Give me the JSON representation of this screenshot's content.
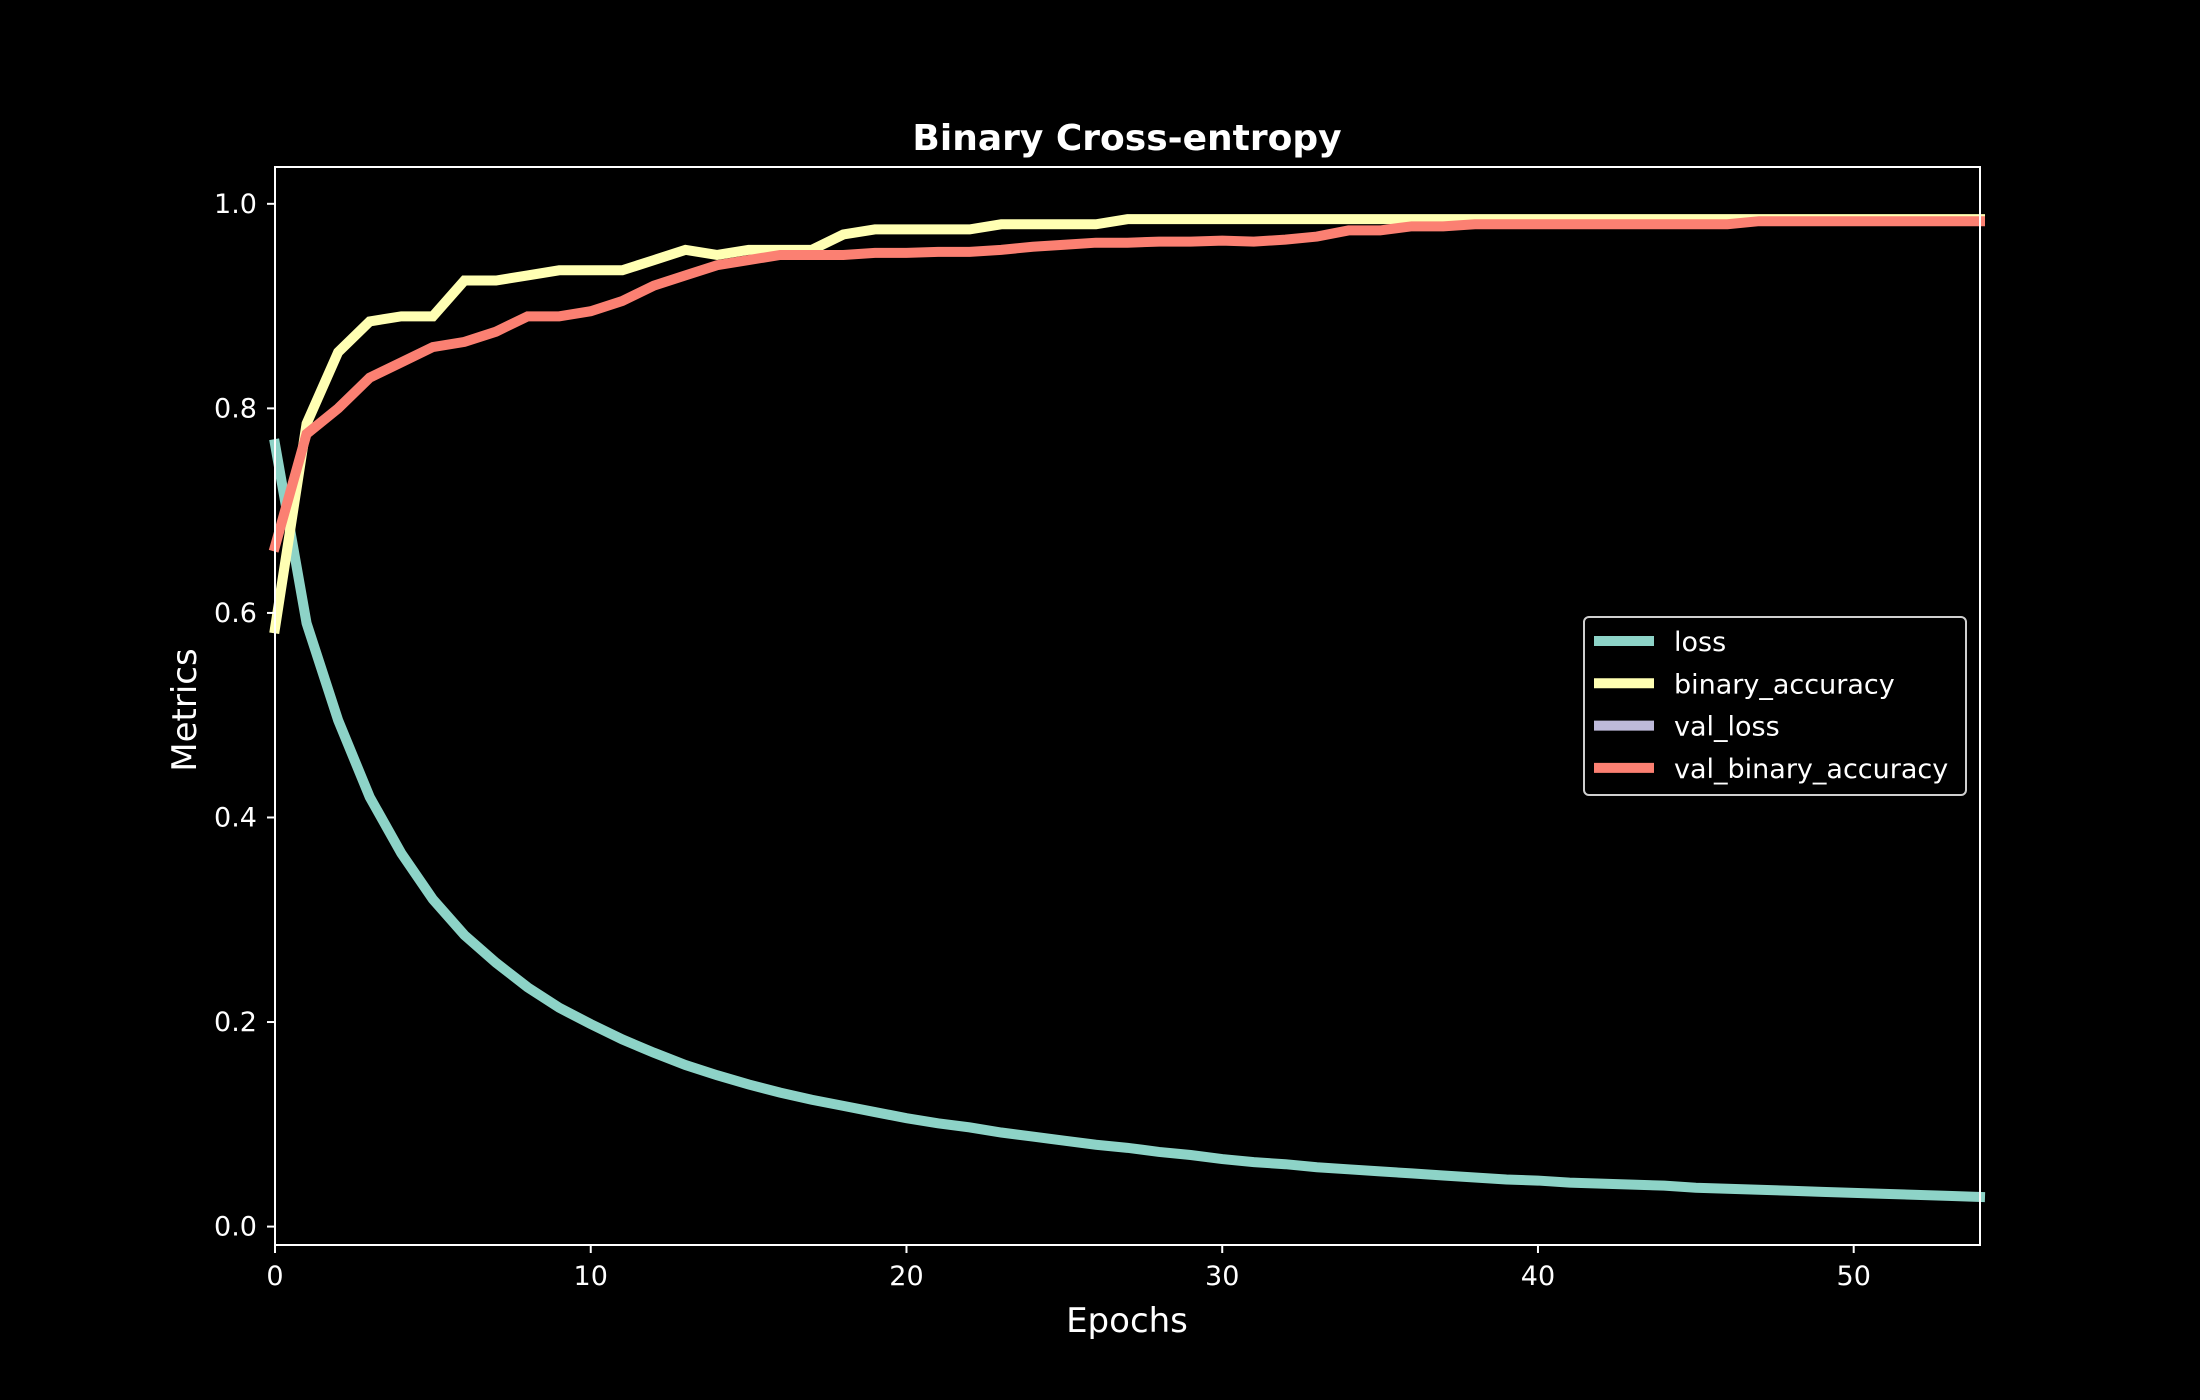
{
  "chart_data": {
    "type": "line",
    "title": "Binary Cross-entropy",
    "xlabel": "Epochs",
    "ylabel": "Metrics",
    "xlim": [
      0,
      54
    ],
    "ylim": [
      -0.018,
      1.036
    ],
    "xticks": [
      0,
      10,
      20,
      30,
      40,
      50
    ],
    "yticks": [
      0.0,
      0.2,
      0.4,
      0.6,
      0.8,
      1.0
    ],
    "xtick_labels": [
      "0",
      "10",
      "20",
      "30",
      "40",
      "50"
    ],
    "ytick_labels": [
      "0.0",
      "0.2",
      "0.4",
      "0.6",
      "0.8",
      "1.0"
    ],
    "grid": false,
    "legend_position": "center-right",
    "background": "#000000",
    "foreground": "#ffffff",
    "series": [
      {
        "name": "loss",
        "color": "#8dd3c7",
        "x": [
          0,
          1,
          2,
          3,
          4,
          5,
          6,
          7,
          8,
          9,
          10,
          11,
          12,
          13,
          14,
          15,
          16,
          17,
          18,
          19,
          20,
          21,
          22,
          23,
          24,
          25,
          26,
          27,
          28,
          29,
          30,
          31,
          32,
          33,
          34,
          35,
          36,
          37,
          38,
          39,
          40,
          41,
          42,
          43,
          44,
          45,
          46,
          47,
          48,
          49,
          50,
          51,
          52,
          53,
          54
        ],
        "values": [
          0.765,
          0.59,
          0.495,
          0.42,
          0.365,
          0.32,
          0.285,
          0.258,
          0.234,
          0.214,
          0.198,
          0.183,
          0.17,
          0.158,
          0.148,
          0.139,
          0.131,
          0.124,
          0.118,
          0.112,
          0.106,
          0.101,
          0.097,
          0.092,
          0.088,
          0.084,
          0.08,
          0.077,
          0.073,
          0.07,
          0.066,
          0.063,
          0.061,
          0.058,
          0.056,
          0.054,
          0.052,
          0.05,
          0.048,
          0.046,
          0.045,
          0.043,
          0.042,
          0.041,
          0.04,
          0.038,
          0.037,
          0.036,
          0.035,
          0.034,
          0.033,
          0.032,
          0.031,
          0.03,
          0.029
        ]
      },
      {
        "name": "binary_accuracy",
        "color": "#ffffb3",
        "x": [
          0,
          1,
          2,
          3,
          4,
          5,
          6,
          7,
          8,
          9,
          10,
          11,
          12,
          13,
          14,
          15,
          16,
          17,
          18,
          19,
          20,
          21,
          22,
          23,
          24,
          25,
          26,
          27,
          28,
          29,
          30,
          31,
          32,
          33,
          34,
          35,
          36,
          37,
          38,
          39,
          40,
          41,
          42,
          43,
          44,
          45,
          46,
          47,
          48,
          49,
          50,
          51,
          52,
          53,
          54
        ],
        "values": [
          0.585,
          0.785,
          0.855,
          0.885,
          0.89,
          0.89,
          0.925,
          0.925,
          0.93,
          0.935,
          0.935,
          0.935,
          0.945,
          0.955,
          0.95,
          0.955,
          0.955,
          0.955,
          0.97,
          0.975,
          0.975,
          0.975,
          0.975,
          0.98,
          0.98,
          0.98,
          0.98,
          0.985,
          0.985,
          0.985,
          0.985,
          0.985,
          0.985,
          0.985,
          0.985,
          0.985,
          0.985,
          0.985,
          0.985,
          0.985,
          0.985,
          0.985,
          0.985,
          0.985,
          0.985,
          0.985,
          0.985,
          0.985,
          0.985,
          0.985,
          0.985,
          0.985,
          0.985,
          0.985,
          0.985
        ]
      },
      {
        "name": "val_loss",
        "color": "#bebada",
        "x": [],
        "values": []
      },
      {
        "name": "val_binary_accuracy",
        "color": "#fb8072",
        "x": [
          0,
          1,
          2,
          3,
          4,
          5,
          6,
          7,
          8,
          9,
          10,
          11,
          12,
          13,
          14,
          15,
          16,
          17,
          18,
          19,
          20,
          21,
          22,
          23,
          24,
          25,
          26,
          27,
          28,
          29,
          30,
          31,
          32,
          33,
          34,
          35,
          36,
          37,
          38,
          39,
          40,
          41,
          42,
          43,
          44,
          45,
          46,
          47,
          48,
          49,
          50,
          51,
          52,
          53,
          54
        ],
        "values": [
          0.665,
          0.775,
          0.8,
          0.83,
          0.845,
          0.86,
          0.865,
          0.875,
          0.89,
          0.89,
          0.895,
          0.905,
          0.92,
          0.93,
          0.94,
          0.945,
          0.95,
          0.95,
          0.95,
          0.952,
          0.952,
          0.953,
          0.953,
          0.955,
          0.958,
          0.96,
          0.962,
          0.962,
          0.963,
          0.963,
          0.964,
          0.963,
          0.965,
          0.968,
          0.974,
          0.974,
          0.978,
          0.978,
          0.98,
          0.98,
          0.98,
          0.98,
          0.98,
          0.98,
          0.98,
          0.98,
          0.98,
          0.983,
          0.983,
          0.983,
          0.983,
          0.983,
          0.983,
          0.983,
          0.983
        ]
      }
    ]
  }
}
